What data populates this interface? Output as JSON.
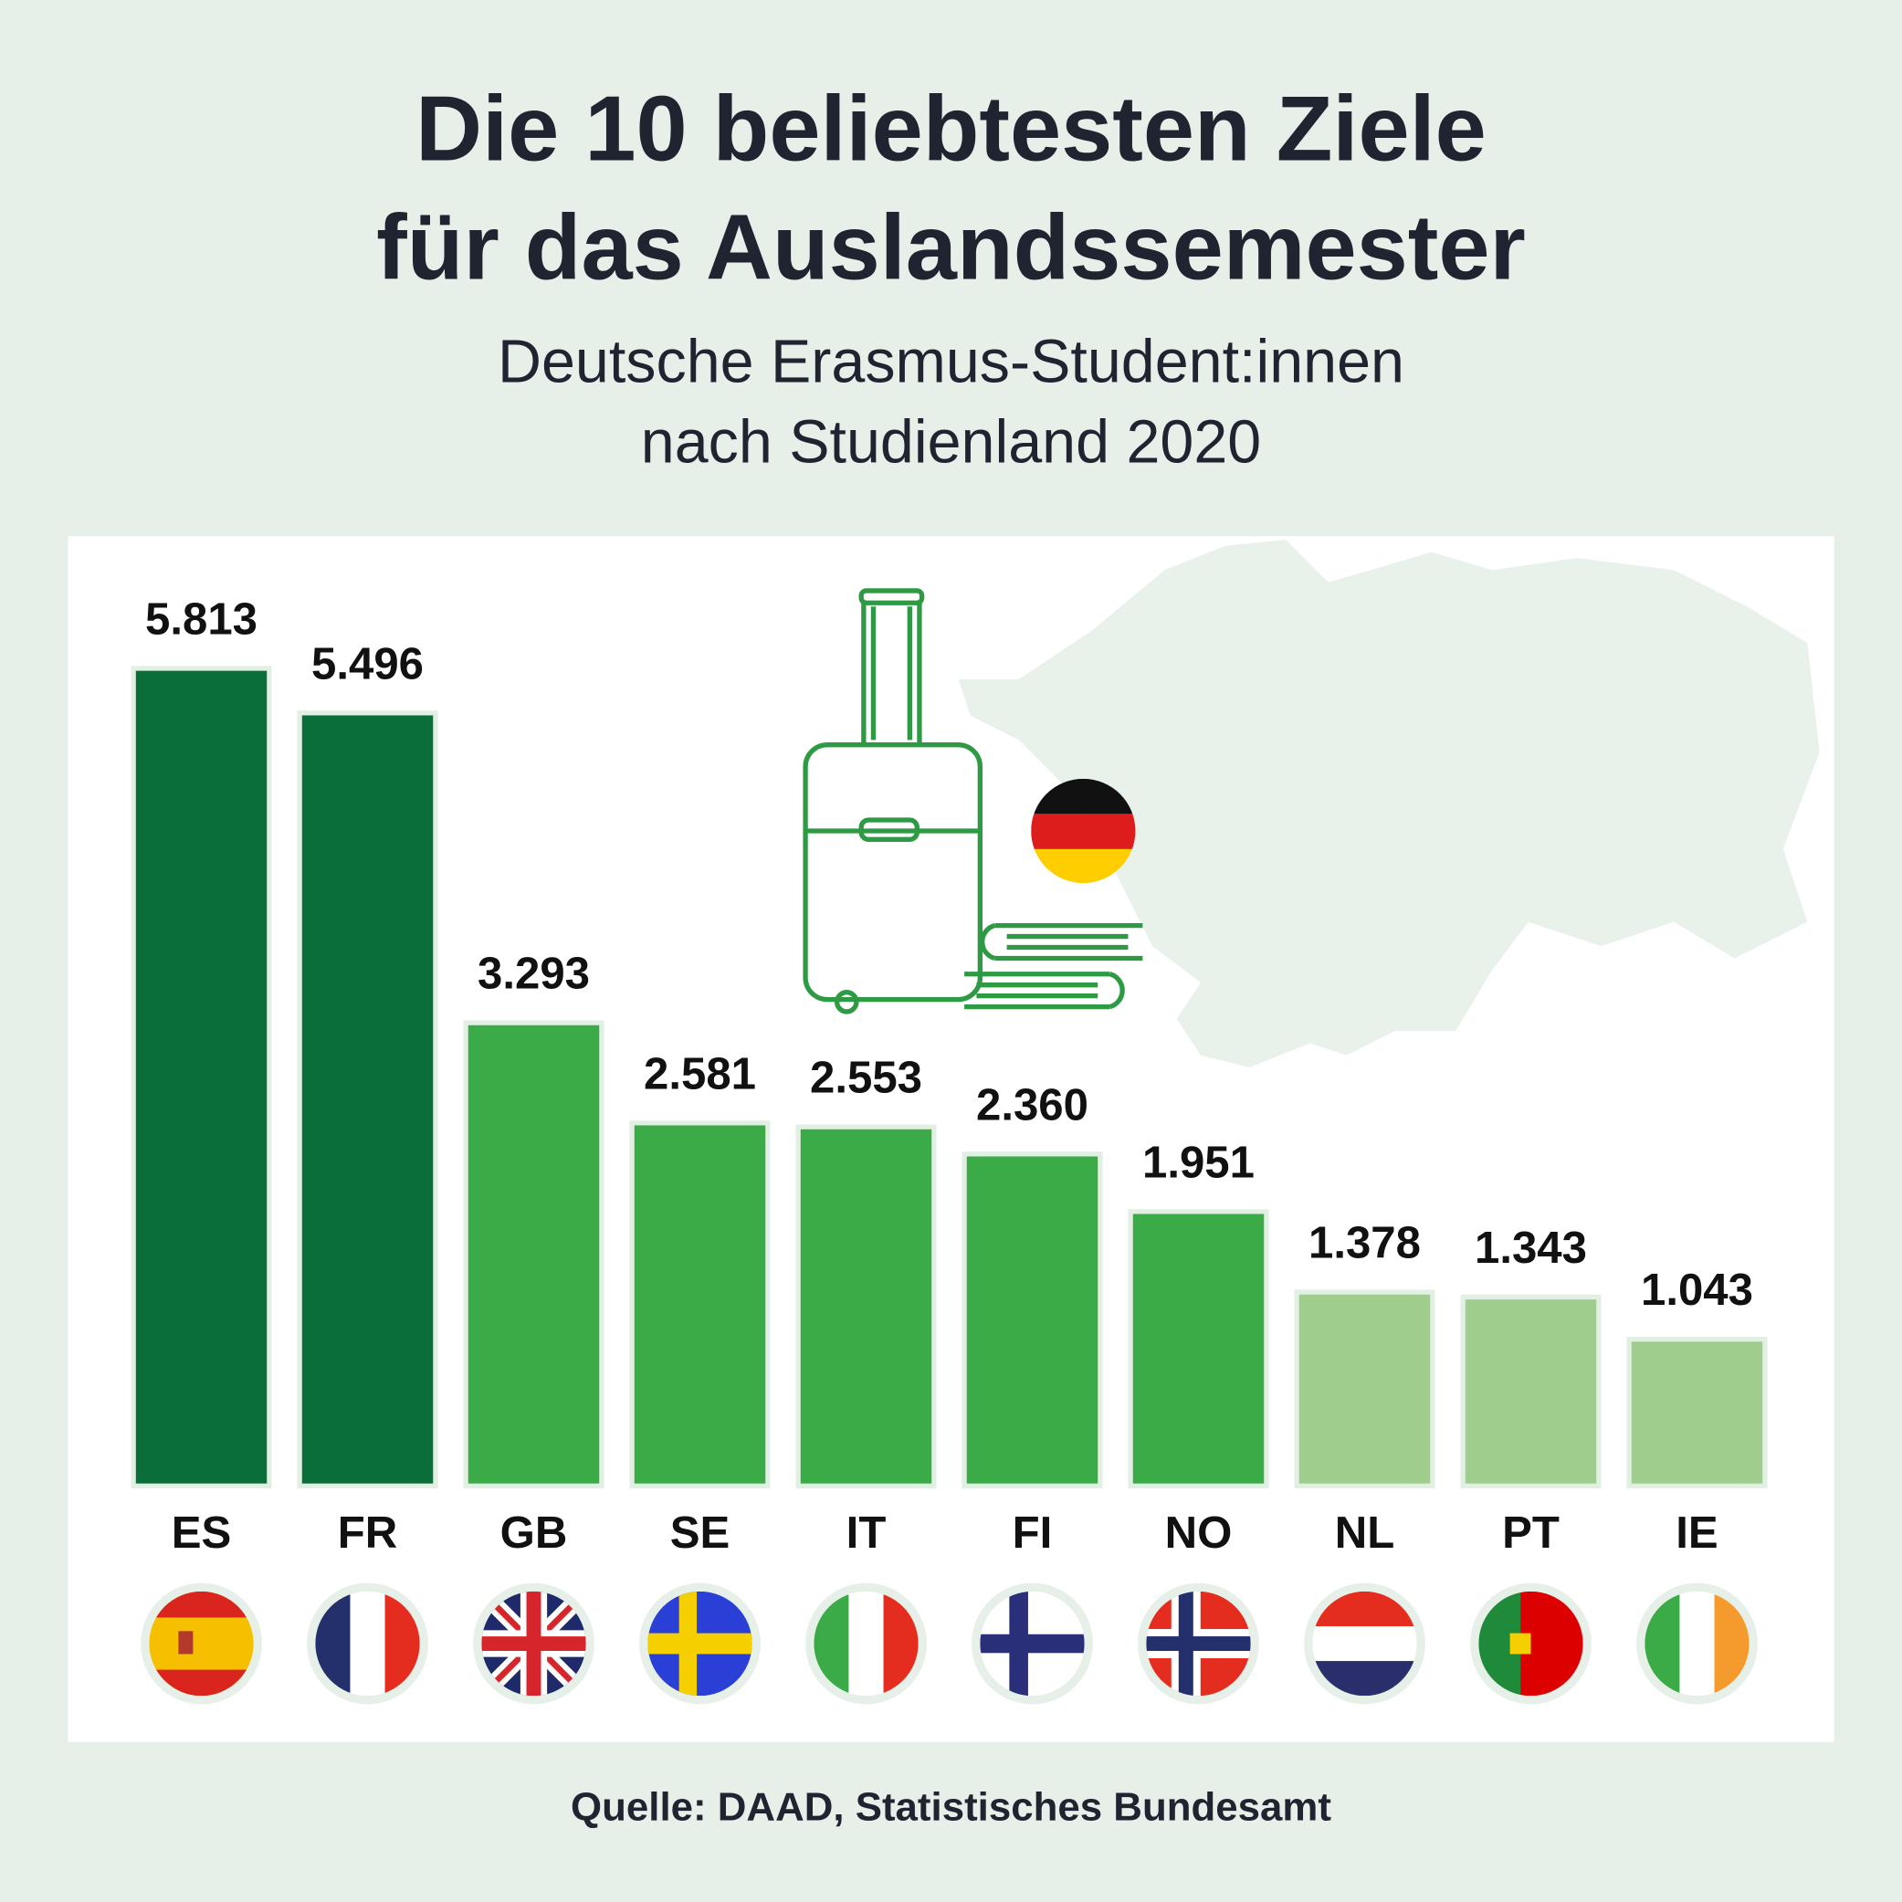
{
  "chart_data": {
    "type": "bar",
    "title": [
      "Die 10 beliebtesten Ziele",
      "für das Auslandssemester"
    ],
    "subtitle": [
      "Deutsche Erasmus-Student:innen",
      "nach Studienland 2020"
    ],
    "categories": [
      "ES",
      "FR",
      "GB",
      "SE",
      "IT",
      "FI",
      "NO",
      "NL",
      "PT",
      "IE"
    ],
    "values": [
      5813,
      5496,
      3293,
      2581,
      2553,
      2360,
      1951,
      1378,
      1343,
      1043
    ],
    "value_labels": [
      "5.813",
      "5.496",
      "3.293",
      "2.581",
      "2.553",
      "2.360",
      "1.951",
      "1.378",
      "1.343",
      "1.043"
    ],
    "colors": [
      "#0a6e3a",
      "#0a6e3a",
      "#3aab47",
      "#3aab47",
      "#3aab47",
      "#3aab47",
      "#3aab47",
      "#9fcd8d",
      "#9fcd8d",
      "#9fcd8d"
    ],
    "source": "Quelle: DAAD, Statistisches Bundesamt"
  }
}
